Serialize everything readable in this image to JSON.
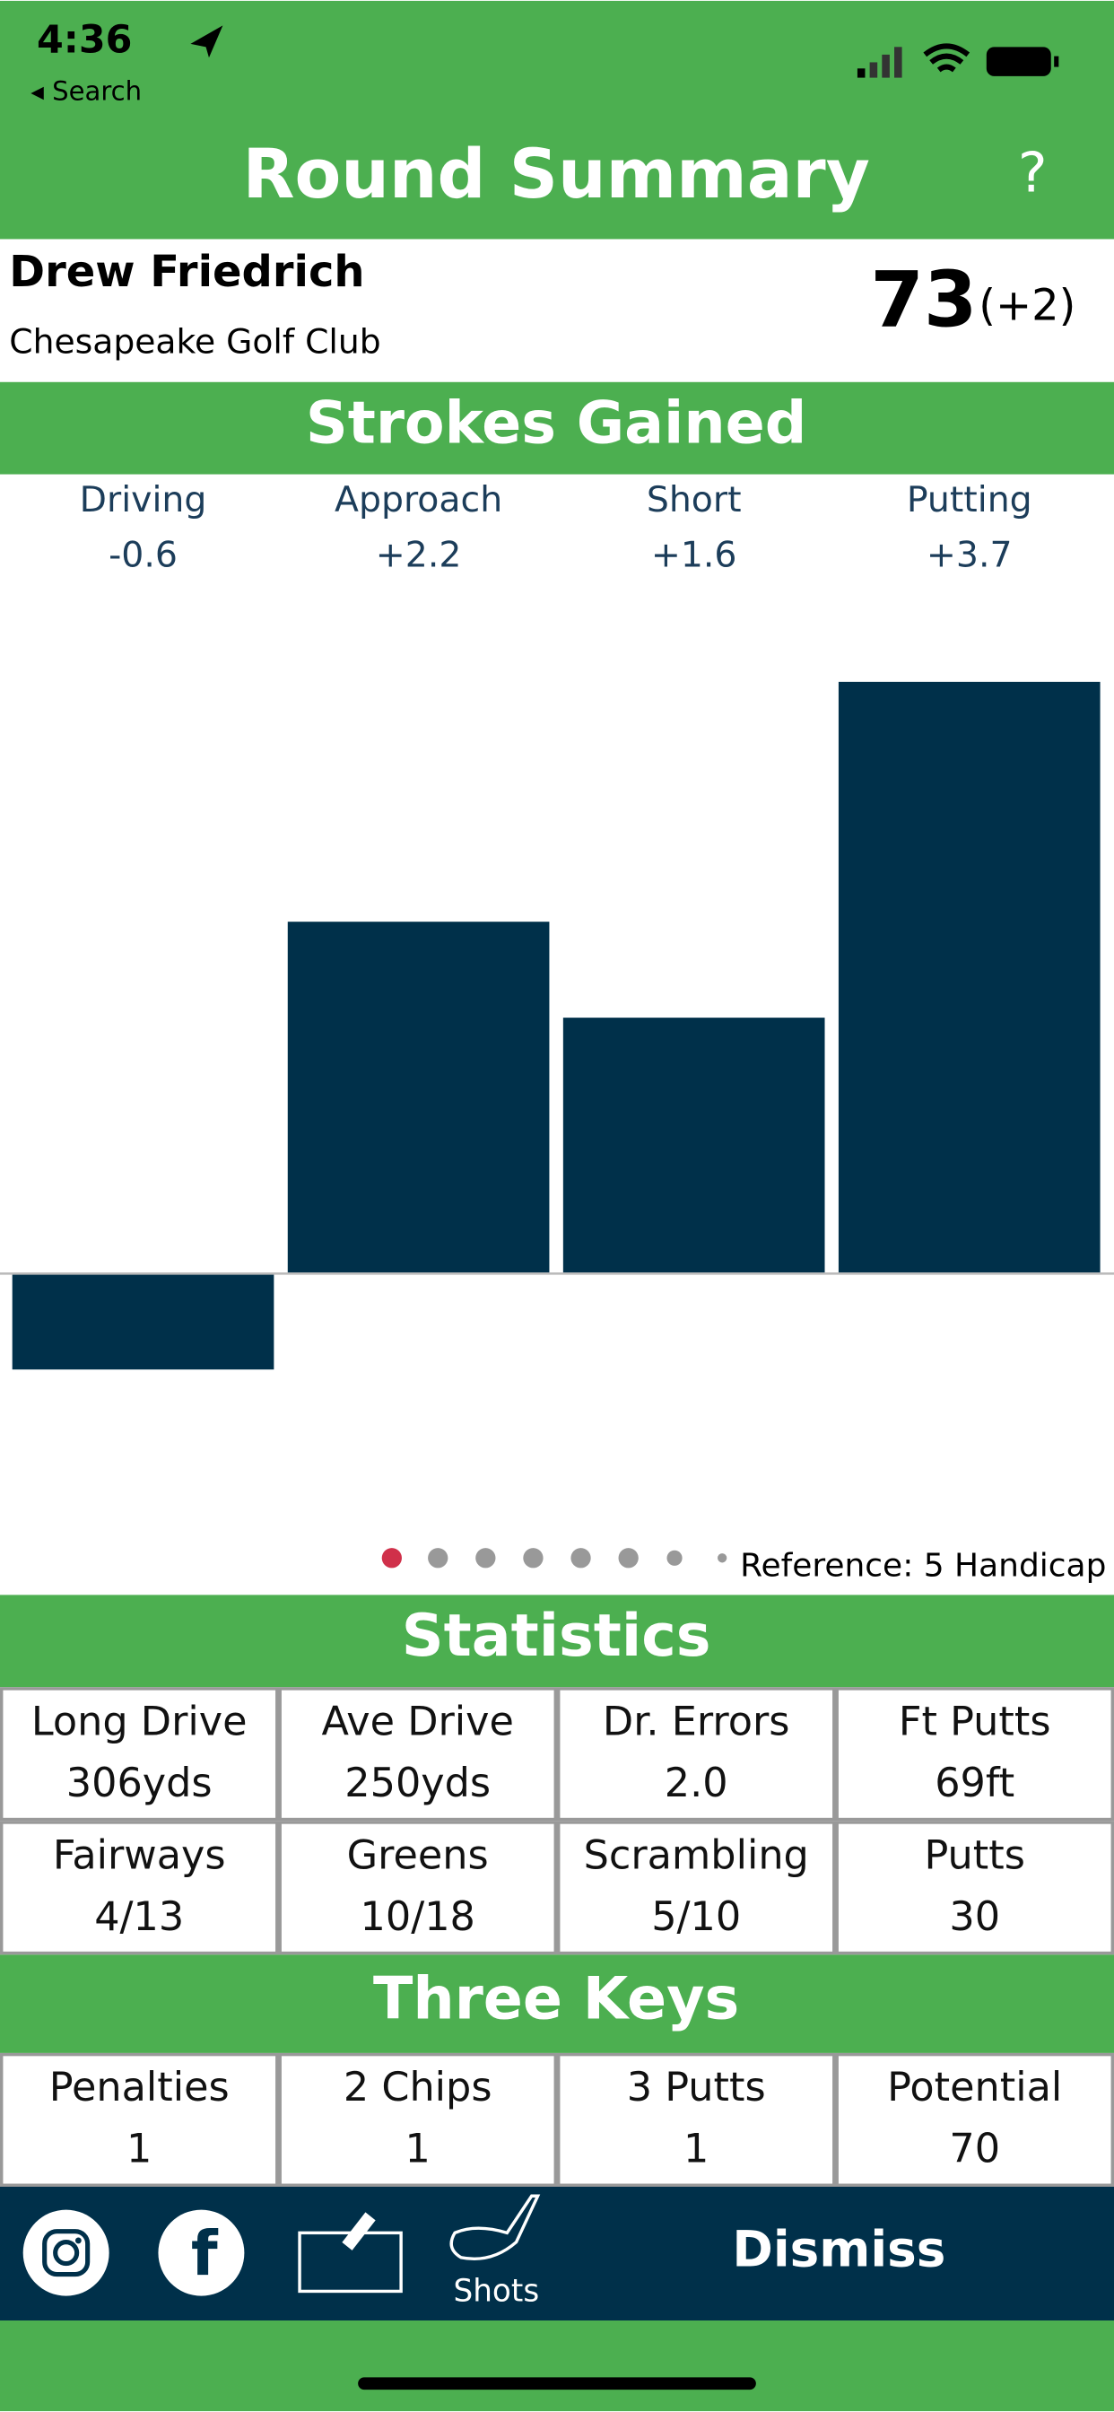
{
  "status_bar": {
    "time": "4:36",
    "back": "◂ Search"
  },
  "header": {
    "title": "Round Summary",
    "help": "?"
  },
  "player": {
    "name": "Drew Friedrich",
    "course": "Chesapeake Golf Club",
    "score": "73",
    "to_par": "(+2)"
  },
  "chart_data": {
    "type": "bar",
    "title": "Strokes Gained",
    "categories": [
      "Driving",
      "Approach",
      "Short",
      "Putting"
    ],
    "values": [
      -0.6,
      2.2,
      1.6,
      3.7
    ],
    "value_labels": [
      "-0.6",
      "+2.2",
      "+1.6",
      "+3.7"
    ],
    "color": "#00304a",
    "ylim": [
      -1.5,
      4.2
    ],
    "note": "Reference: 5 Handicap"
  },
  "statistics": {
    "title": "Statistics",
    "cells": [
      {
        "label": "Long Drive",
        "value": "306yds"
      },
      {
        "label": "Ave Drive",
        "value": "250yds"
      },
      {
        "label": "Dr. Errors",
        "value": "2.0"
      },
      {
        "label": "Ft Putts",
        "value": "69ft"
      },
      {
        "label": "Fairways",
        "value": "4/13"
      },
      {
        "label": "Greens",
        "value": "10/18"
      },
      {
        "label": "Scrambling",
        "value": "5/10"
      },
      {
        "label": "Putts",
        "value": "30"
      }
    ]
  },
  "three_keys": {
    "title": "Three Keys",
    "cells": [
      {
        "label": "Penalties",
        "value": "1"
      },
      {
        "label": "2 Chips",
        "value": "1"
      },
      {
        "label": "3 Putts",
        "value": "1"
      },
      {
        "label": "Potential",
        "value": "70"
      }
    ]
  },
  "toolbar": {
    "shots": "Shots",
    "dismiss": "Dismiss"
  }
}
